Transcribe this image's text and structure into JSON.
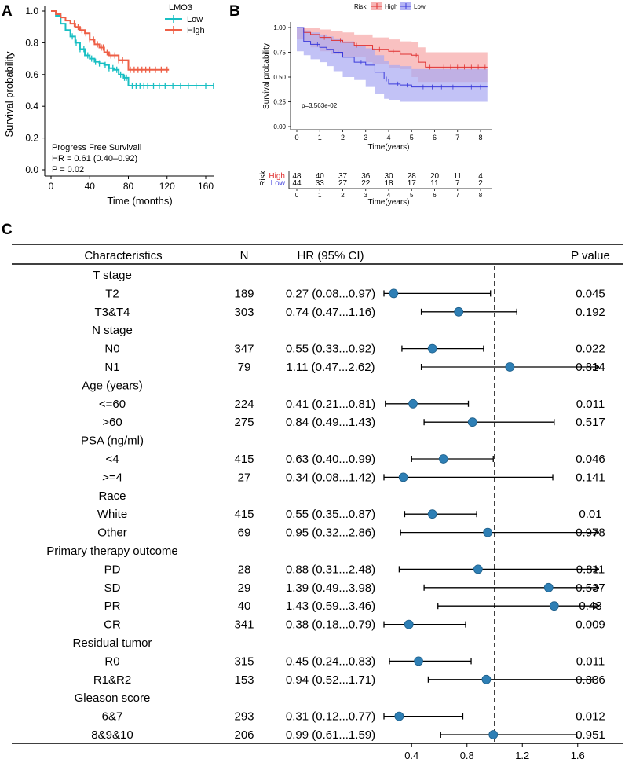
{
  "colors": {
    "teal": "#19BFC3",
    "red": "#EE5F46",
    "km_high": "#E03131",
    "km_low": "#3B3BDB",
    "dot": "#2E7FB5"
  },
  "panel_a": {
    "label": "A",
    "xlabel": "Time (months)",
    "ylabel": "Survival probability",
    "legend_title": "LMO3",
    "legend_low": "Low",
    "legend_high": "High",
    "annot1": "Progress Free Survivall",
    "annot2": "HR = 0.61 (0.40–0.92)",
    "annot3": "P = 0.02",
    "xticks": [
      "0",
      "40",
      "80",
      "120",
      "160"
    ],
    "yticks": [
      "0.0",
      "0.2",
      "0.4",
      "0.6",
      "0.8",
      "1.0"
    ]
  },
  "panel_b": {
    "label": "B",
    "legend_title": "Risk",
    "legend_high": "High",
    "legend_low": "Low",
    "ylabel": "Survival probability",
    "xlabel": "Time(years)",
    "pvalue": "p=3.563e-02",
    "yticks": [
      "0.00",
      "0.25",
      "0.50",
      "0.75",
      "1.00"
    ],
    "xticks": [
      "0",
      "1",
      "2",
      "3",
      "4",
      "5",
      "6",
      "7",
      "8"
    ],
    "risk_label": "Risk",
    "risk_high_label": "High",
    "risk_low_label": "Low",
    "risk_high_values": [
      "48",
      "40",
      "37",
      "36",
      "30",
      "28",
      "20",
      "11",
      "4"
    ],
    "risk_low_values": [
      "44",
      "33",
      "27",
      "22",
      "18",
      "17",
      "11",
      "7",
      "2"
    ],
    "risk_xlabel": "Time(years)"
  },
  "panel_c": {
    "label": "C"
  },
  "chart_data": [
    {
      "type": "line",
      "title": "",
      "xlabel": "Time (months)",
      "ylabel": "Survival probability",
      "xlim": [
        0,
        170
      ],
      "ylim": [
        0,
        1
      ],
      "series": [
        {
          "name": "Low",
          "x": [
            0,
            5,
            10,
            15,
            20,
            25,
            30,
            35,
            40,
            45,
            50,
            55,
            60,
            65,
            70,
            75,
            80,
            85,
            90,
            95,
            100,
            110,
            120,
            140,
            160,
            168
          ],
          "y": [
            1.0,
            0.97,
            0.92,
            0.88,
            0.84,
            0.8,
            0.76,
            0.72,
            0.7,
            0.68,
            0.67,
            0.66,
            0.64,
            0.63,
            0.6,
            0.58,
            0.53,
            0.53,
            0.53,
            0.53,
            0.53,
            0.53,
            0.53,
            0.53,
            0.53,
            0.53
          ]
        },
        {
          "name": "High",
          "x": [
            0,
            5,
            10,
            15,
            20,
            25,
            30,
            35,
            40,
            45,
            50,
            55,
            60,
            65,
            70,
            75,
            80,
            85,
            90,
            95,
            100,
            110,
            122
          ],
          "y": [
            1.0,
            0.98,
            0.96,
            0.94,
            0.92,
            0.9,
            0.88,
            0.86,
            0.82,
            0.79,
            0.77,
            0.74,
            0.72,
            0.72,
            0.69,
            0.69,
            0.63,
            0.63,
            0.63,
            0.63,
            0.63,
            0.63,
            0.63
          ]
        }
      ]
    },
    {
      "type": "line",
      "title": "",
      "xlabel": "Time(years)",
      "ylabel": "Survival probability",
      "xlim": [
        0,
        8.3
      ],
      "ylim": [
        0,
        1
      ],
      "series": [
        {
          "name": "High",
          "x": [
            0,
            0.3,
            0.6,
            1,
            1.5,
            2,
            2.5,
            3,
            3.3,
            4,
            4.5,
            5,
            5.3,
            5.6,
            8.3
          ],
          "y": [
            1.0,
            0.95,
            0.93,
            0.9,
            0.87,
            0.85,
            0.82,
            0.82,
            0.78,
            0.76,
            0.73,
            0.72,
            0.65,
            0.6,
            0.6
          ],
          "ci_low": [
            1.0,
            0.88,
            0.85,
            0.8,
            0.76,
            0.73,
            0.7,
            0.7,
            0.65,
            0.63,
            0.59,
            0.58,
            0.5,
            0.45,
            0.45
          ],
          "ci_high": [
            1.0,
            1.0,
            1.0,
            0.98,
            0.96,
            0.95,
            0.93,
            0.93,
            0.9,
            0.88,
            0.86,
            0.85,
            0.8,
            0.75,
            0.75
          ]
        },
        {
          "name": "Low",
          "x": [
            0,
            0.3,
            0.6,
            1,
            1.3,
            1.6,
            2,
            2.5,
            3,
            3.4,
            3.8,
            4,
            4.5,
            5,
            8.3
          ],
          "y": [
            1.0,
            0.86,
            0.83,
            0.8,
            0.78,
            0.75,
            0.7,
            0.65,
            0.62,
            0.55,
            0.48,
            0.43,
            0.42,
            0.4,
            0.4
          ],
          "ci_low": [
            1.0,
            0.76,
            0.72,
            0.68,
            0.65,
            0.61,
            0.56,
            0.5,
            0.47,
            0.4,
            0.33,
            0.28,
            0.27,
            0.25,
            0.25
          ],
          "ci_high": [
            1.0,
            0.97,
            0.95,
            0.93,
            0.91,
            0.89,
            0.86,
            0.82,
            0.79,
            0.72,
            0.66,
            0.62,
            0.61,
            0.58,
            0.58
          ]
        }
      ],
      "pvalue": "p=3.563e-02"
    },
    {
      "type": "forest",
      "title": "",
      "xlabel": "",
      "xticks": [
        0.4,
        0.8,
        1.2,
        1.6
      ],
      "xlim": [
        0.2,
        1.75
      ],
      "reference_line": 1.0,
      "headers": {
        "characteristics": "Characteristics",
        "n": "N",
        "hr": "HR (95% CI)",
        "p": "P value"
      },
      "rows": [
        {
          "label": "T stage",
          "group": true
        },
        {
          "label": "T2",
          "n": "189",
          "hr_text": "0.27 (0.08...0.97)",
          "hr": 0.27,
          "lo": 0.08,
          "hi": 0.97,
          "p": "0.045"
        },
        {
          "label": "T3&T4",
          "n": "303",
          "hr_text": "0.74 (0.47...1.16)",
          "hr": 0.74,
          "lo": 0.47,
          "hi": 1.16,
          "p": "0.192"
        },
        {
          "label": "N stage",
          "group": true
        },
        {
          "label": "N0",
          "n": "347",
          "hr_text": "0.55 (0.33...0.92)",
          "hr": 0.55,
          "lo": 0.33,
          "hi": 0.92,
          "p": "0.022"
        },
        {
          "label": "N1",
          "n": "79",
          "hr_text": "1.11 (0.47...2.62)",
          "hr": 1.11,
          "lo": 0.47,
          "hi": 2.62,
          "p": "0.814"
        },
        {
          "label": "Age (years)",
          "group": true
        },
        {
          "label": "<=60",
          "n": "224",
          "hr_text": "0.41 (0.21...0.81)",
          "hr": 0.41,
          "lo": 0.21,
          "hi": 0.81,
          "p": "0.011"
        },
        {
          "label": ">60",
          "n": "275",
          "hr_text": "0.84 (0.49...1.43)",
          "hr": 0.84,
          "lo": 0.49,
          "hi": 1.43,
          "p": "0.517"
        },
        {
          "label": "PSA (ng/ml)",
          "group": true
        },
        {
          "label": "<4",
          "n": "415",
          "hr_text": "0.63 (0.40...0.99)",
          "hr": 0.63,
          "lo": 0.4,
          "hi": 0.99,
          "p": "0.046"
        },
        {
          "label": ">=4",
          "n": "27",
          "hr_text": "0.34 (0.08...1.42)",
          "hr": 0.34,
          "lo": 0.08,
          "hi": 1.42,
          "p": "0.141"
        },
        {
          "label": "Race",
          "group": true
        },
        {
          "label": "White",
          "n": "415",
          "hr_text": "0.55 (0.35...0.87)",
          "hr": 0.55,
          "lo": 0.35,
          "hi": 0.87,
          "p": "0.01"
        },
        {
          "label": "Other",
          "n": "69",
          "hr_text": "0.95 (0.32...2.86)",
          "hr": 0.95,
          "lo": 0.32,
          "hi": 2.86,
          "p": "0.978"
        },
        {
          "label": "Primary therapy outcome",
          "group": true
        },
        {
          "label": "PD",
          "n": "28",
          "hr_text": "0.88 (0.31...2.48)",
          "hr": 0.88,
          "lo": 0.31,
          "hi": 2.48,
          "p": "0.811"
        },
        {
          "label": "SD",
          "n": "29",
          "hr_text": "1.39 (0.49...3.98)",
          "hr": 1.39,
          "lo": 0.49,
          "hi": 3.98,
          "p": "0.537"
        },
        {
          "label": "PR",
          "n": "40",
          "hr_text": "1.43 (0.59...3.46)",
          "hr": 1.43,
          "lo": 0.59,
          "hi": 3.46,
          "p": "0.43"
        },
        {
          "label": "CR",
          "n": "341",
          "hr_text": "0.38 (0.18...0.79)",
          "hr": 0.38,
          "lo": 0.18,
          "hi": 0.79,
          "p": "0.009"
        },
        {
          "label": "Residual tumor",
          "group": true
        },
        {
          "label": "R0",
          "n": "315",
          "hr_text": "0.45 (0.24...0.83)",
          "hr": 0.45,
          "lo": 0.24,
          "hi": 0.83,
          "p": "0.011"
        },
        {
          "label": "R1&R2",
          "n": "153",
          "hr_text": "0.94 (0.52...1.71)",
          "hr": 0.94,
          "lo": 0.52,
          "hi": 1.71,
          "p": "0.836"
        },
        {
          "label": "Gleason score",
          "group": true
        },
        {
          "label": "6&7",
          "n": "293",
          "hr_text": "0.31 (0.12...0.77)",
          "hr": 0.31,
          "lo": 0.12,
          "hi": 0.77,
          "p": "0.012"
        },
        {
          "label": "8&9&10",
          "n": "206",
          "hr_text": "0.99 (0.61...1.59)",
          "hr": 0.99,
          "lo": 0.61,
          "hi": 1.59,
          "p": "0.951"
        }
      ]
    }
  ]
}
